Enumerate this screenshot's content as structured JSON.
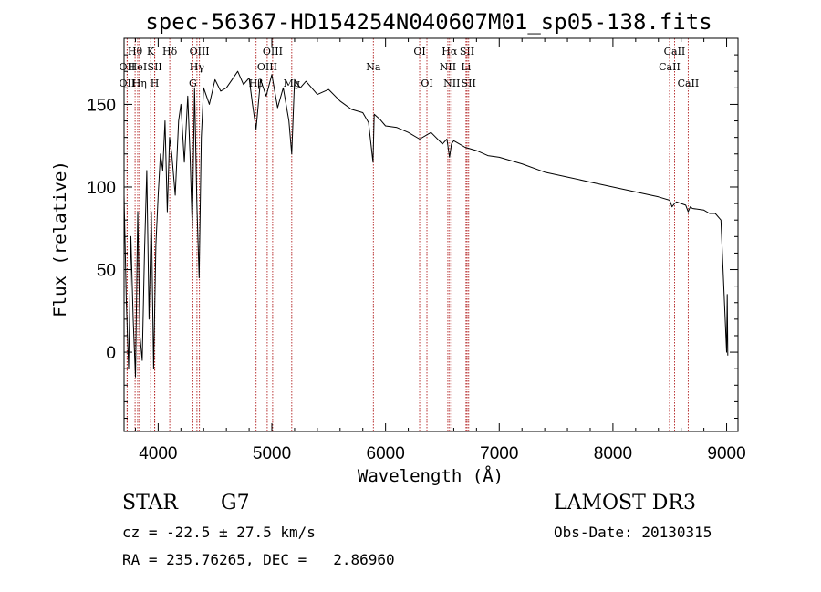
{
  "chart_data": {
    "type": "line",
    "title": "spec-56367-HD154254N040607M01_sp05-138.fits",
    "xlabel": "Wavelength (Å)",
    "ylabel": "Flux (relative)",
    "xlim": [
      3700,
      9100
    ],
    "ylim": [
      -48,
      190
    ],
    "x_ticks": [
      4000,
      5000,
      6000,
      7000,
      8000,
      9000
    ],
    "y_ticks": [
      0,
      50,
      100,
      150
    ],
    "series": [
      {
        "name": "spectrum",
        "x": [
          3700,
          3720,
          3740,
          3760,
          3780,
          3800,
          3820,
          3840,
          3860,
          3880,
          3900,
          3920,
          3940,
          3960,
          3980,
          4000,
          4020,
          4040,
          4060,
          4080,
          4100,
          4120,
          4150,
          4180,
          4200,
          4230,
          4260,
          4280,
          4300,
          4320,
          4340,
          4360,
          4380,
          4400,
          4450,
          4500,
          4550,
          4600,
          4650,
          4700,
          4750,
          4800,
          4830,
          4861,
          4900,
          4950,
          5000,
          5050,
          5100,
          5150,
          5175,
          5200,
          5250,
          5300,
          5400,
          5500,
          5600,
          5700,
          5800,
          5850,
          5890,
          5900,
          5950,
          6000,
          6100,
          6200,
          6300,
          6400,
          6500,
          6540,
          6563,
          6580,
          6600,
          6700,
          6800,
          6900,
          7000,
          7200,
          7400,
          7600,
          7800,
          8000,
          8200,
          8400,
          8500,
          8520,
          8542,
          8560,
          8600,
          8640,
          8662,
          8680,
          8700,
          8800,
          8850,
          8900,
          8950,
          9000,
          9005,
          9010
        ],
        "y": [
          95,
          30,
          -10,
          70,
          20,
          -15,
          85,
          10,
          -5,
          60,
          110,
          20,
          85,
          -10,
          65,
          95,
          120,
          110,
          140,
          85,
          130,
          120,
          95,
          140,
          150,
          115,
          155,
          120,
          75,
          160,
          90,
          45,
          130,
          160,
          150,
          165,
          158,
          160,
          165,
          170,
          162,
          166,
          150,
          135,
          165,
          155,
          168,
          148,
          160,
          140,
          120,
          165,
          160,
          164,
          156,
          159,
          152,
          147,
          145,
          139,
          115,
          144,
          141,
          137,
          136,
          133,
          129,
          133,
          126,
          129,
          118,
          126,
          128,
          124,
          122,
          119,
          118,
          114,
          109,
          106,
          103,
          100,
          97,
          94,
          92,
          88,
          90,
          91,
          90,
          89,
          85,
          88,
          87,
          86,
          84,
          84,
          80,
          0,
          35,
          -2
        ]
      }
    ],
    "line_ids": [
      {
        "label": "OII",
        "x": 3727,
        "row": 2
      },
      {
        "label": "OII",
        "x": 3727,
        "row": 3
      },
      {
        "label": "Hθ",
        "x": 3797,
        "row": 1
      },
      {
        "label": "HeI",
        "x": 3820,
        "row": 2
      },
      {
        "label": "Hη",
        "x": 3835,
        "row": 3
      },
      {
        "label": "K",
        "x": 3934,
        "row": 1
      },
      {
        "label": "SII",
        "x": 3970,
        "row": 2
      },
      {
        "label": "H",
        "x": 3969,
        "row": 3
      },
      {
        "label": "Hδ",
        "x": 4102,
        "row": 1
      },
      {
        "label": "OIII",
        "x": 4363,
        "row": 1
      },
      {
        "label": "Hγ",
        "x": 4341,
        "row": 2
      },
      {
        "label": "G",
        "x": 4305,
        "row": 3
      },
      {
        "label": "Hβ",
        "x": 4861,
        "row": 3
      },
      {
        "label": "OIII",
        "x": 5007,
        "row": 1
      },
      {
        "label": "OIII",
        "x": 4959,
        "row": 2
      },
      {
        "label": "Mg",
        "x": 5175,
        "row": 3
      },
      {
        "label": "Na",
        "x": 5893,
        "row": 2
      },
      {
        "label": "OI",
        "x": 6300,
        "row": 1
      },
      {
        "label": "OI",
        "x": 6364,
        "row": 3
      },
      {
        "label": "Hα",
        "x": 6563,
        "row": 1
      },
      {
        "label": "NII",
        "x": 6548,
        "row": 2
      },
      {
        "label": "NII",
        "x": 6583,
        "row": 3
      },
      {
        "label": "SII",
        "x": 6717,
        "row": 1
      },
      {
        "label": "Li",
        "x": 6708,
        "row": 2
      },
      {
        "label": "SII",
        "x": 6731,
        "row": 3
      },
      {
        "label": "CaII",
        "x": 8542,
        "row": 1
      },
      {
        "label": "CaII",
        "x": 8498,
        "row": 2
      },
      {
        "label": "CaII",
        "x": 8662,
        "row": 3
      }
    ]
  },
  "footer": {
    "class_label": "STAR",
    "subclass": "G7",
    "survey": "LAMOST DR3",
    "redshift": "cz = -22.5 ± 27.5 km/s",
    "obs_date": "Obs-Date: 20130315",
    "coords": "RA = 235.76265, DEC =   2.86960"
  }
}
